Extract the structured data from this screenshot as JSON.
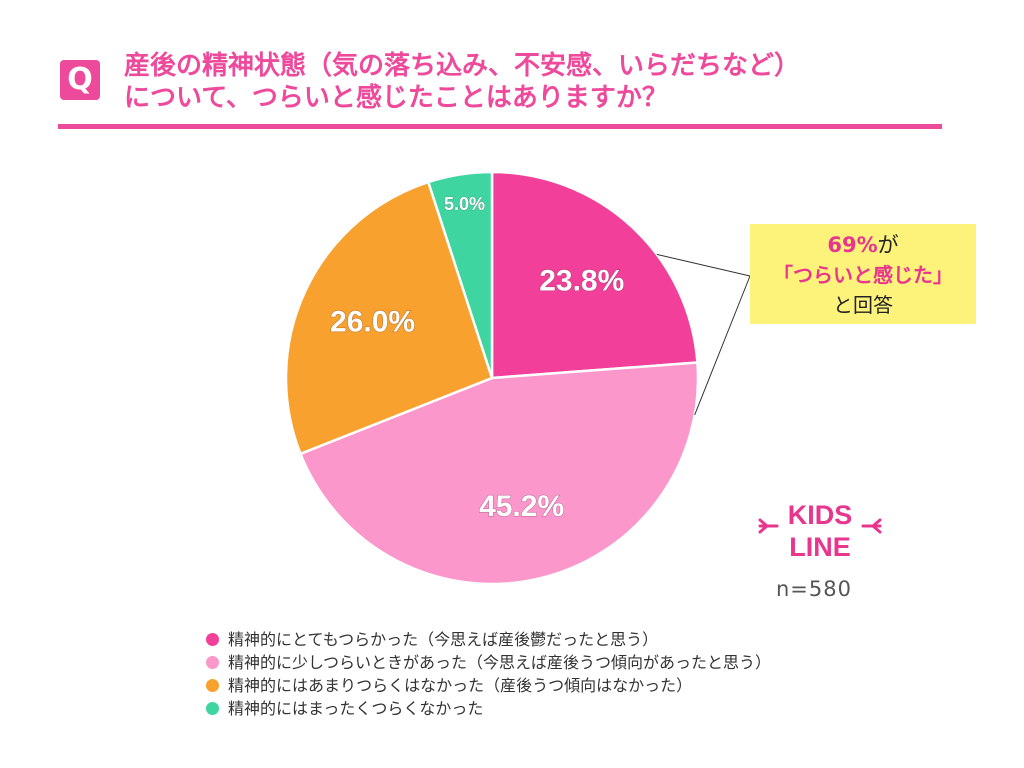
{
  "header": {
    "badge": "Q",
    "question_line1": "産後の精神状態（気の落ち込み、不安感、いらだちなど）",
    "question_line2": "について、つらいと感じたことはありますか？"
  },
  "callout": {
    "percent": "69%",
    "percent_suffix": "が",
    "quote": "「つらいと感じた」",
    "tail": "と回答"
  },
  "logo": {
    "line1": "KIDS",
    "line2": "LINE"
  },
  "sample_size": "n=580",
  "chart_data": {
    "type": "pie",
    "start": "12 o'clock",
    "direction": "clockwise",
    "slices": [
      {
        "label": "精神的にとてもつらかった（今思えば産後鬱だったと思う）",
        "value": 23.8,
        "display": "23.8%",
        "color": "#f2409a"
      },
      {
        "label": "精神的に少しつらいときがあった（今思えば産後うつ傾向があったと思う）",
        "value": 45.2,
        "display": "45.2%",
        "color": "#fb97cb"
      },
      {
        "label": "精神的にはあまりつらくはなかった（産後うつ傾向はなかった）",
        "value": 26.0,
        "display": "26.0%",
        "color": "#f8a12e"
      },
      {
        "label": "精神的にはまったくつらくなかった",
        "value": 5.0,
        "display": "5.0%",
        "color": "#3fd5a1"
      }
    ]
  }
}
